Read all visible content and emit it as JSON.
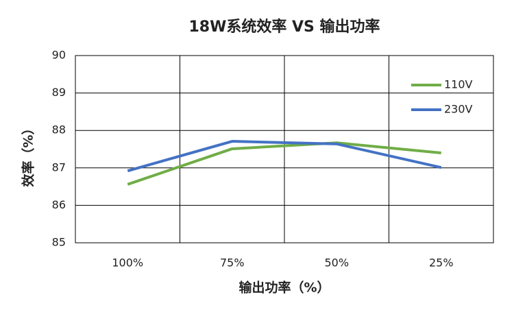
{
  "chart_data": {
    "type": "line",
    "title": "18W系统效率 VS 输出功率",
    "x_label": "输出功率（%）",
    "y_label": "效率（%）",
    "categories": [
      "100%",
      "75%",
      "50%",
      "25%"
    ],
    "series": [
      {
        "name": "110V",
        "color": "#70ad47",
        "values": [
          86.56,
          87.51,
          87.67,
          87.4
        ]
      },
      {
        "name": "230V",
        "color": "#4472c4",
        "values": [
          86.92,
          87.71,
          87.64,
          87.01
        ]
      }
    ],
    "ylim": [
      85,
      90
    ],
    "yticks": [
      85,
      86,
      87,
      88,
      89,
      90
    ],
    "grid": true,
    "legend": "upper right"
  }
}
